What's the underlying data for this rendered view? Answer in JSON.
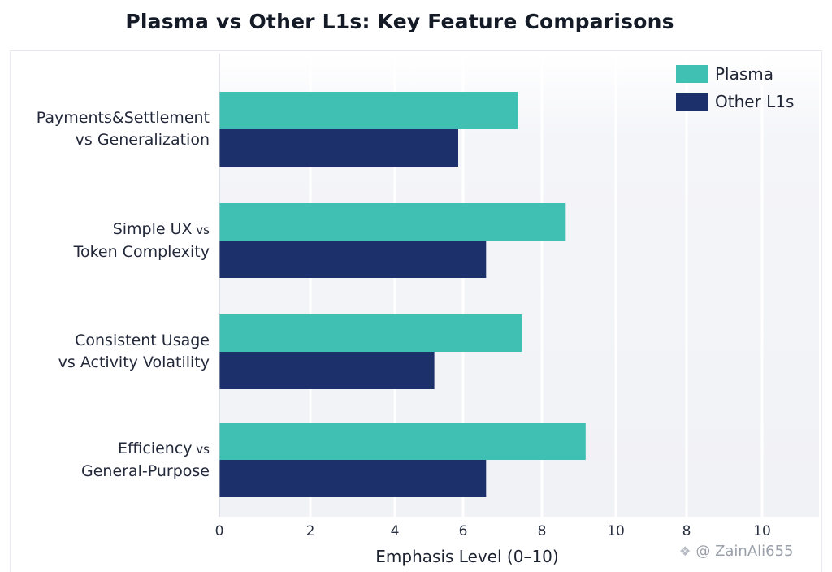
{
  "chart_data": {
    "type": "bar",
    "orientation": "horizontal",
    "title": "Plasma vs Other L1s: Key Feature Comparisons",
    "xlabel": "Emphasis Level (0–10)",
    "xticks": [
      "0",
      "2",
      "4",
      "6",
      "8",
      "10",
      "8",
      "10"
    ],
    "categories": [
      {
        "line1": "Payments&Settlement",
        "line2": "vs Generalization"
      },
      {
        "line1": "Simple UX",
        "line1_small": "vs",
        "line2": "Token Complexity"
      },
      {
        "line1": "Consistent Usage",
        "line2": "vs Activity Volatility"
      },
      {
        "line1": "Efficiency",
        "line1_small": "vs",
        "line2": "General-Purpose"
      }
    ],
    "series": [
      {
        "name": "Plasma",
        "color": "#40bfb3",
        "values": [
          7.5,
          8.7,
          7.6,
          9.2
        ]
      },
      {
        "name": "Other L1s",
        "color": "#1c306c",
        "values": [
          6.0,
          6.7,
          5.4,
          6.7
        ]
      }
    ],
    "axis_max_scale": 10,
    "legend_position": "top-right"
  },
  "watermark": {
    "text": "@ ZainAli655",
    "icon": "app-logo-icon"
  }
}
